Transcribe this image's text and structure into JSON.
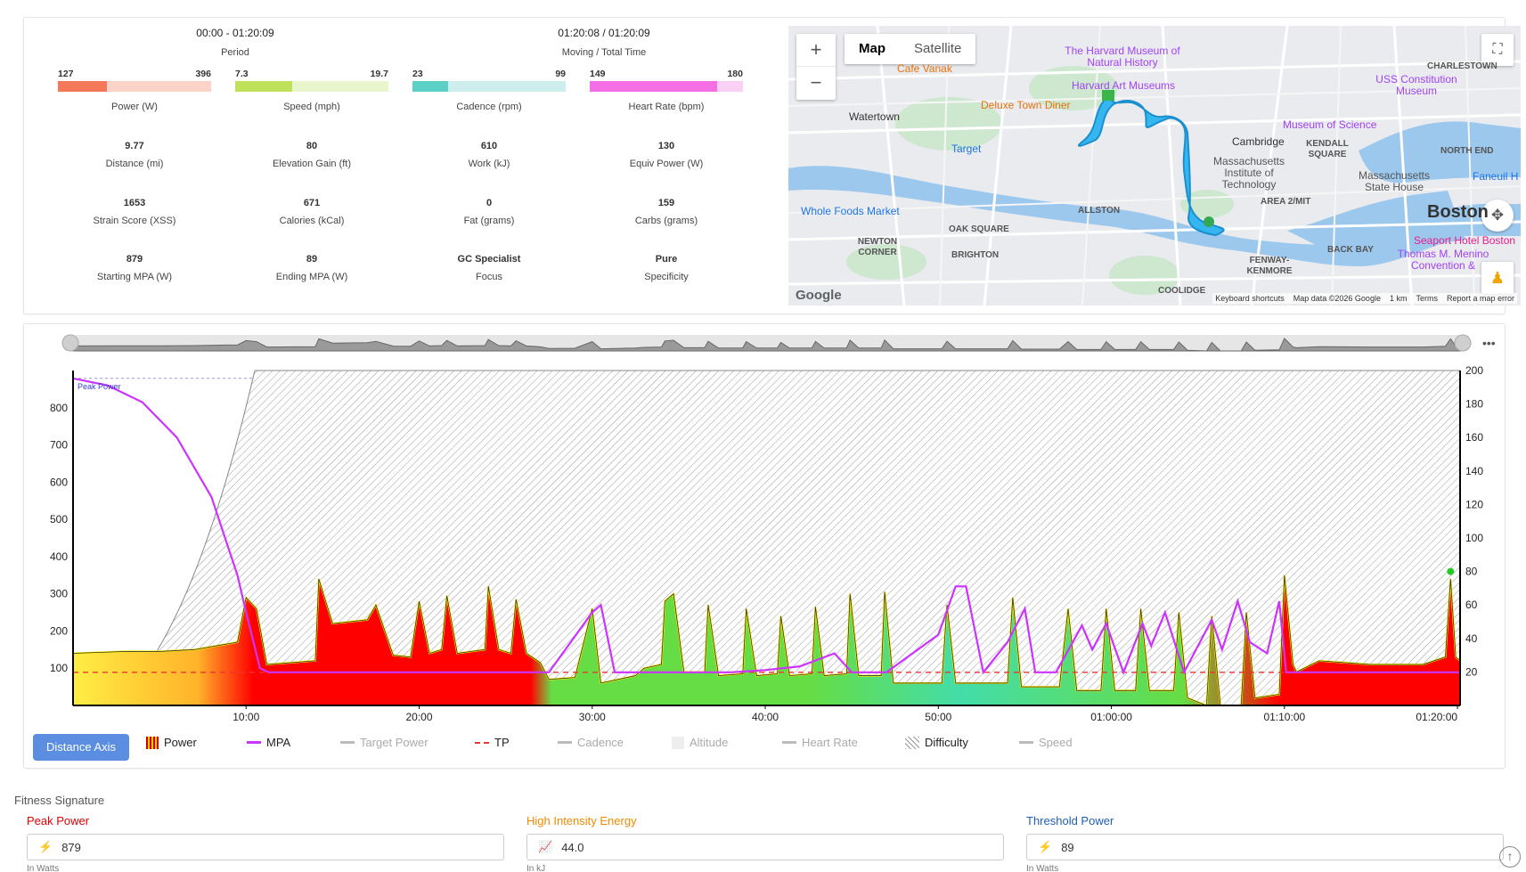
{
  "header": {
    "period": {
      "value": "00:00 - 01:20:09",
      "label": "Period"
    },
    "time": {
      "value": "01:20:08 / 01:20:09",
      "label": "Moving / Total Time"
    }
  },
  "ranges": [
    {
      "min": "127",
      "max": "396",
      "label": "Power (W)",
      "fill_color": "#f4785a",
      "track_color": "#fbd3c8",
      "fill_fraction": 0.32
    },
    {
      "min": "7.3",
      "max": "19.7",
      "label": "Speed (mph)",
      "fill_color": "#bfe25a",
      "track_color": "#e9f5cc",
      "fill_fraction": 0.37
    },
    {
      "min": "23",
      "max": "99",
      "label": "Cadence (rpm)",
      "fill_color": "#5ccfc6",
      "track_color": "#cdeeed",
      "fill_fraction": 0.23
    },
    {
      "min": "149",
      "max": "180",
      "label": "Heart Rate (bpm)",
      "fill_color": "#f46ee6",
      "track_color": "#fbd0f5",
      "fill_fraction": 0.83
    }
  ],
  "stats": [
    {
      "value": "9.77",
      "label": "Distance (mi)"
    },
    {
      "value": "80",
      "label": "Elevation Gain (ft)"
    },
    {
      "value": "610",
      "label": "Work (kJ)"
    },
    {
      "value": "130",
      "label": "Equiv Power (W)"
    },
    {
      "value": "1653",
      "label": "Strain Score (XSS)"
    },
    {
      "value": "671",
      "label": "Calories (kCal)"
    },
    {
      "value": "0",
      "label": "Fat (grams)"
    },
    {
      "value": "159",
      "label": "Carbs (grams)"
    },
    {
      "value": "879",
      "label": "Starting MPA (W)"
    },
    {
      "value": "89",
      "label": "Ending MPA (W)"
    },
    {
      "value": "GC Specialist",
      "label": "Focus"
    },
    {
      "value": "Pure",
      "label": "Specificity"
    }
  ],
  "map": {
    "type_map": "Map",
    "type_satellite": "Satellite",
    "zoom_in": "+",
    "zoom_out": "−",
    "places": [
      "Watertown",
      "Cambridge",
      "Target",
      "Whole Foods Market",
      "Deluxe Town Diner",
      "Cafe Vanak",
      "The Harvard Museum of Natural History",
      "Harvard Art Museums",
      "Museum of Science",
      "USS Constitution Museum",
      "Massachusetts Institute of Technology",
      "Massachusetts State House",
      "ALLSTON",
      "OAK SQUARE",
      "BRIGHTON",
      "NEWTON CORNER",
      "KENDALL SQUARE",
      "NORTH END",
      "CHARLESTOWN",
      "BACK BAY",
      "FENWAY-KENMORE",
      "AREA 2/MIT",
      "Boston",
      "Seaport Hotel Boston",
      "Thomas M. Menino Convention &",
      "Faneuil H",
      "COOLIDGE"
    ],
    "google": "Google",
    "attrib": [
      "Keyboard shortcuts",
      "Map data ©2026 Google",
      "1 km",
      "Terms",
      "Report a map error"
    ]
  },
  "chart_data": {
    "type": "area",
    "x_unit": "time",
    "x_ticks": [
      "10:00",
      "20:00",
      "30:00",
      "40:00",
      "50:00",
      "01:00:00",
      "01:10:00",
      "01:20:00"
    ],
    "x_tick_minutes": [
      10,
      20,
      30,
      40,
      50,
      60,
      70,
      80
    ],
    "x_range_minutes": [
      0,
      80.15
    ],
    "y_left_ticks": [
      100,
      200,
      300,
      400,
      500,
      600,
      700,
      800
    ],
    "y_left_range": [
      0,
      900
    ],
    "y_right_ticks": [
      20,
      40,
      60,
      80,
      100,
      120,
      140,
      160,
      180,
      200
    ],
    "y_right_range": [
      0,
      200
    ],
    "annotation": "Peak Power",
    "tp_watts": 89,
    "series": [
      {
        "name": "Power",
        "color": "#ff0000",
        "points": [
          [
            0,
            140
          ],
          [
            3,
            145
          ],
          [
            5,
            145
          ],
          [
            7,
            150
          ],
          [
            9.5,
            170
          ],
          [
            10,
            290
          ],
          [
            10.6,
            260
          ],
          [
            11.2,
            110
          ],
          [
            14,
            120
          ],
          [
            14.2,
            340
          ],
          [
            15,
            220
          ],
          [
            17,
            230
          ],
          [
            17.5,
            270
          ],
          [
            18.5,
            135
          ],
          [
            19.5,
            130
          ],
          [
            20,
            280
          ],
          [
            20.6,
            140
          ],
          [
            21.3,
            150
          ],
          [
            21.6,
            295
          ],
          [
            22.2,
            140
          ],
          [
            23.8,
            150
          ],
          [
            24,
            320
          ],
          [
            24.6,
            150
          ],
          [
            25.3,
            140
          ],
          [
            25.6,
            285
          ],
          [
            26.2,
            140
          ],
          [
            27,
            115
          ],
          [
            27.5,
            70
          ],
          [
            29,
            75
          ],
          [
            30,
            260
          ],
          [
            30.5,
            60
          ],
          [
            32.5,
            80
          ],
          [
            33,
            100
          ],
          [
            34,
            110
          ],
          [
            34.2,
            280
          ],
          [
            34.7,
            300
          ],
          [
            35.3,
            90
          ],
          [
            36.5,
            90
          ],
          [
            36.7,
            270
          ],
          [
            37.3,
            80
          ],
          [
            38.7,
            85
          ],
          [
            38.9,
            260
          ],
          [
            39.5,
            80
          ],
          [
            40.7,
            85
          ],
          [
            40.9,
            240
          ],
          [
            41.4,
            80
          ],
          [
            42.7,
            85
          ],
          [
            42.9,
            265
          ],
          [
            43.4,
            80
          ],
          [
            44.7,
            85
          ],
          [
            44.9,
            300
          ],
          [
            45.4,
            80
          ],
          [
            46.7,
            80
          ],
          [
            46.9,
            305
          ],
          [
            47.4,
            60
          ],
          [
            50.2,
            60
          ],
          [
            50.5,
            270
          ],
          [
            51,
            60
          ],
          [
            54,
            60
          ],
          [
            54.3,
            290
          ],
          [
            54.8,
            50
          ],
          [
            57,
            50
          ],
          [
            57.5,
            260
          ],
          [
            58,
            40
          ],
          [
            59.4,
            40
          ],
          [
            59.7,
            260
          ],
          [
            60.2,
            40
          ],
          [
            61.4,
            40
          ],
          [
            61.7,
            260
          ],
          [
            62.2,
            40
          ],
          [
            63.6,
            40
          ],
          [
            63.9,
            250
          ],
          [
            64.4,
            20
          ],
          [
            65.5,
            0
          ],
          [
            65.8,
            240
          ],
          [
            66.3,
            0
          ],
          [
            67.5,
            0
          ],
          [
            67.8,
            250
          ],
          [
            68.3,
            20
          ],
          [
            69.7,
            30
          ],
          [
            70,
            350
          ],
          [
            70.5,
            110
          ],
          [
            70.7,
            90
          ],
          [
            72,
            120
          ],
          [
            75,
            110
          ],
          [
            78,
            110
          ],
          [
            79.3,
            130
          ],
          [
            79.6,
            340
          ],
          [
            79.9,
            130
          ],
          [
            80.15,
            120
          ]
        ]
      },
      {
        "name": "MPA",
        "color": "#cc33ff",
        "points": [
          [
            0,
            879
          ],
          [
            2,
            860
          ],
          [
            4,
            815
          ],
          [
            6,
            720
          ],
          [
            8,
            560
          ],
          [
            9.5,
            350
          ],
          [
            10,
            250
          ],
          [
            10.8,
            100
          ],
          [
            11.3,
            89
          ],
          [
            26,
            89
          ],
          [
            27.5,
            89
          ],
          [
            30,
            250
          ],
          [
            30.5,
            270
          ],
          [
            31.3,
            89
          ],
          [
            38,
            89
          ],
          [
            40,
            95
          ],
          [
            42,
            105
          ],
          [
            44,
            140
          ],
          [
            45,
            89
          ],
          [
            47,
            89
          ],
          [
            50,
            190
          ],
          [
            51,
            320
          ],
          [
            51.6,
            320
          ],
          [
            52.6,
            89
          ],
          [
            54,
            170
          ],
          [
            55,
            260
          ],
          [
            55.6,
            89
          ],
          [
            56.8,
            89
          ],
          [
            58.3,
            215
          ],
          [
            58.9,
            150
          ],
          [
            59.7,
            220
          ],
          [
            60.7,
            89
          ],
          [
            61.8,
            220
          ],
          [
            62.3,
            160
          ],
          [
            63.1,
            250
          ],
          [
            64.2,
            89
          ],
          [
            65.8,
            230
          ],
          [
            66.4,
            150
          ],
          [
            67.3,
            280
          ],
          [
            68,
            170
          ],
          [
            69,
            140
          ],
          [
            69.7,
            280
          ],
          [
            70.1,
            89
          ],
          [
            80.15,
            89
          ]
        ]
      }
    ],
    "difficulty_fill_to_minute": 10.5,
    "overview_track": true
  },
  "legend": {
    "distance_axis": "Distance Axis",
    "items": [
      {
        "label": "Power",
        "on": true
      },
      {
        "label": "MPA",
        "on": true
      },
      {
        "label": "Target Power",
        "on": false
      },
      {
        "label": "TP",
        "on": true
      },
      {
        "label": "Cadence",
        "on": false
      },
      {
        "label": "Altitude",
        "on": false
      },
      {
        "label": "Heart Rate",
        "on": false
      },
      {
        "label": "Difficulty",
        "on": true
      },
      {
        "label": "Speed",
        "on": false
      }
    ]
  },
  "fitness": {
    "title": "Fitness Signature",
    "peak": {
      "label": "Peak Power",
      "value": "879",
      "unit": "In Watts",
      "color": "#e00000"
    },
    "hie": {
      "label": "High Intensity Energy",
      "value": "44.0",
      "unit": "In kJ",
      "color": "#f08a00"
    },
    "tp": {
      "label": "Threshold Power",
      "value": "89",
      "unit": "In Watts",
      "color": "#1f5fb5"
    }
  }
}
